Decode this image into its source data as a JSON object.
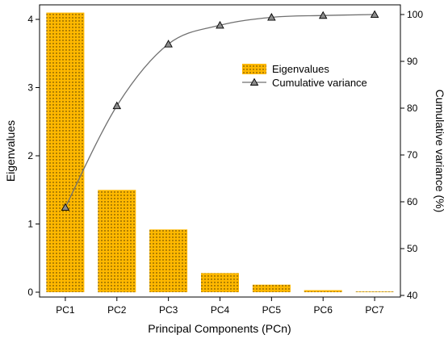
{
  "chart_data": {
    "type": "bar",
    "categories": [
      "PC1",
      "PC2",
      "PC3",
      "PC4",
      "PC5",
      "PC6",
      "PC7"
    ],
    "series": [
      {
        "name": "Eigenvalues",
        "type": "bar",
        "axis": "left",
        "values": [
          4.1,
          1.5,
          0.92,
          0.28,
          0.11,
          0.03,
          0.01
        ],
        "color": "#FFB800"
      },
      {
        "name": "Cumulative variance",
        "type": "line",
        "axis": "right",
        "values": [
          58.8,
          80.5,
          93.7,
          97.7,
          99.4,
          99.8,
          100.0
        ],
        "color": "#707070",
        "marker": "triangle"
      }
    ],
    "xlabel": "Principal Components (PCn)",
    "ylabel": "Eigenvalues",
    "y2label": "Cumulative variance (%)",
    "ylim": [
      0,
      4.2
    ],
    "y2lim": [
      40,
      101.5
    ],
    "yticks": [
      0,
      1,
      2,
      3,
      4
    ],
    "y2ticks": [
      40,
      50,
      60,
      70,
      80,
      90,
      100
    ],
    "grid": false,
    "legend": "top-right"
  }
}
